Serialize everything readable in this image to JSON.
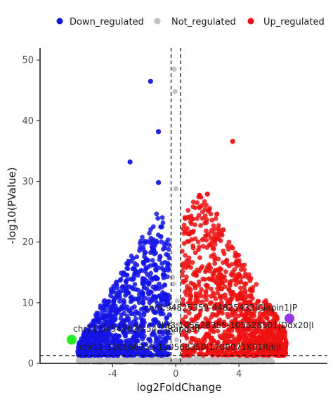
{
  "chart_data": {
    "type": "scatter",
    "title": "",
    "xlabel": "log2FoldChange",
    "ylabel": "-log10(PValue)",
    "xlim": [
      -8.6,
      9.6
    ],
    "ylim": [
      0,
      52
    ],
    "x_ticks": [
      -4,
      0,
      4
    ],
    "y_ticks": [
      0,
      10,
      20,
      30,
      40,
      50
    ],
    "grid": false,
    "legend_position": "top",
    "threshold_lines": {
      "x": [
        -0.3,
        0.3
      ],
      "y": [
        1.3
      ]
    },
    "colors": {
      "Down_regulated": "#1414e6",
      "Not_regulated": "#c0c0c0",
      "Up_regulated": "#ee1111",
      "highlight_green": "#22ee22",
      "highlight_purple": "#9933ee"
    },
    "series": [
      {
        "name": "Down_regulated",
        "points": [
          [
            -1.6,
            46.5
          ],
          [
            -1.1,
            38.2
          ],
          [
            -2.9,
            33.2
          ],
          [
            -1.1,
            29.8
          ],
          [
            -0.9,
            22.5
          ],
          [
            -0.95,
            20.9
          ],
          [
            -1.5,
            19.2
          ],
          [
            -1.0,
            17.6
          ],
          [
            -1.8,
            17.0
          ],
          [
            -1.3,
            16.2
          ],
          [
            -2.2,
            15.3
          ],
          [
            -0.8,
            14.6
          ],
          [
            -2.6,
            14.8
          ],
          [
            -1.2,
            14.0
          ],
          [
            -1.7,
            13.2
          ],
          [
            -0.7,
            12.9
          ],
          [
            -2.0,
            12.5
          ],
          [
            -3.0,
            11.6
          ],
          [
            -1.4,
            11.0
          ],
          [
            -0.9,
            10.4
          ],
          [
            -2.4,
            10.6
          ],
          [
            -3.6,
            8.8
          ],
          [
            -4.1,
            7.2
          ],
          [
            -2.8,
            8.2
          ],
          [
            -1.9,
            9.1
          ],
          [
            -3.3,
            6.4
          ],
          [
            -4.6,
            5.1
          ],
          [
            -5.2,
            3.6
          ],
          [
            -5.8,
            2.6
          ],
          [
            -6.2,
            2.0
          ]
        ]
      },
      {
        "name": "Not_regulated",
        "points": [
          [
            -0.1,
            48.5
          ],
          [
            -0.05,
            44.8
          ],
          [
            0.0,
            28.8
          ],
          [
            -0.2,
            14.2
          ],
          [
            -0.15,
            13.1
          ],
          [
            0.1,
            10.3
          ],
          [
            -0.1,
            9.2
          ],
          [
            0.15,
            6.4
          ],
          [
            -0.2,
            5.1
          ],
          [
            0.05,
            3.9
          ],
          [
            1.6,
            0.6
          ],
          [
            -1.8,
            0.6
          ],
          [
            3.2,
            0.3
          ],
          [
            -3.0,
            0.4
          ],
          [
            4.5,
            0.2
          ]
        ]
      },
      {
        "name": "Up_regulated",
        "points": [
          [
            3.6,
            36.6
          ],
          [
            2.0,
            27.9
          ],
          [
            1.5,
            27.7
          ],
          [
            2.6,
            24.6
          ],
          [
            3.0,
            22.0
          ],
          [
            1.0,
            21.6
          ],
          [
            1.7,
            20.4
          ],
          [
            2.2,
            19.6
          ],
          [
            3.2,
            16.8
          ],
          [
            0.8,
            16.1
          ],
          [
            2.5,
            15.3
          ],
          [
            1.3,
            14.5
          ],
          [
            3.8,
            13.7
          ],
          [
            2.9,
            12.3
          ],
          [
            1.9,
            11.8
          ],
          [
            4.2,
            10.9
          ],
          [
            3.4,
            10.1
          ],
          [
            1.1,
            9.8
          ],
          [
            4.6,
            8.4
          ],
          [
            2.7,
            8.8
          ],
          [
            5.2,
            6.6
          ],
          [
            5.8,
            5.4
          ],
          [
            4.9,
            4.8
          ],
          [
            6.4,
            3.6
          ],
          [
            6.9,
            3.0
          ]
        ]
      }
    ],
    "highlighted_genes": [
      {
        "label": "chr11:54542620-54...|Rapgefl",
        "x": -6.6,
        "y": 3.9,
        "color": "highlight_green"
      },
      {
        "label": "chr9:94825359-94825432|Ciapin1|P",
        "x": 7.2,
        "y": 7.4,
        "color": "highlight_purple"
      }
    ],
    "annotations": [
      {
        "text": "chr9:94825359-94825432|Ciapin1|P",
        "x": -2.0,
        "y": 8.7
      },
      {
        "text": "chr3:105628355-105628501|Ddx20|I",
        "x": -1.2,
        "y": 5.8
      },
      {
        "text": "chr11:54542620-54...|Rapgefl",
        "x": -6.5,
        "y": 5.2
      },
      {
        "text": "chr11:120568253-120568350|1700071K01Rik|I",
        "x": -6.1,
        "y": 2.2
      }
    ]
  }
}
